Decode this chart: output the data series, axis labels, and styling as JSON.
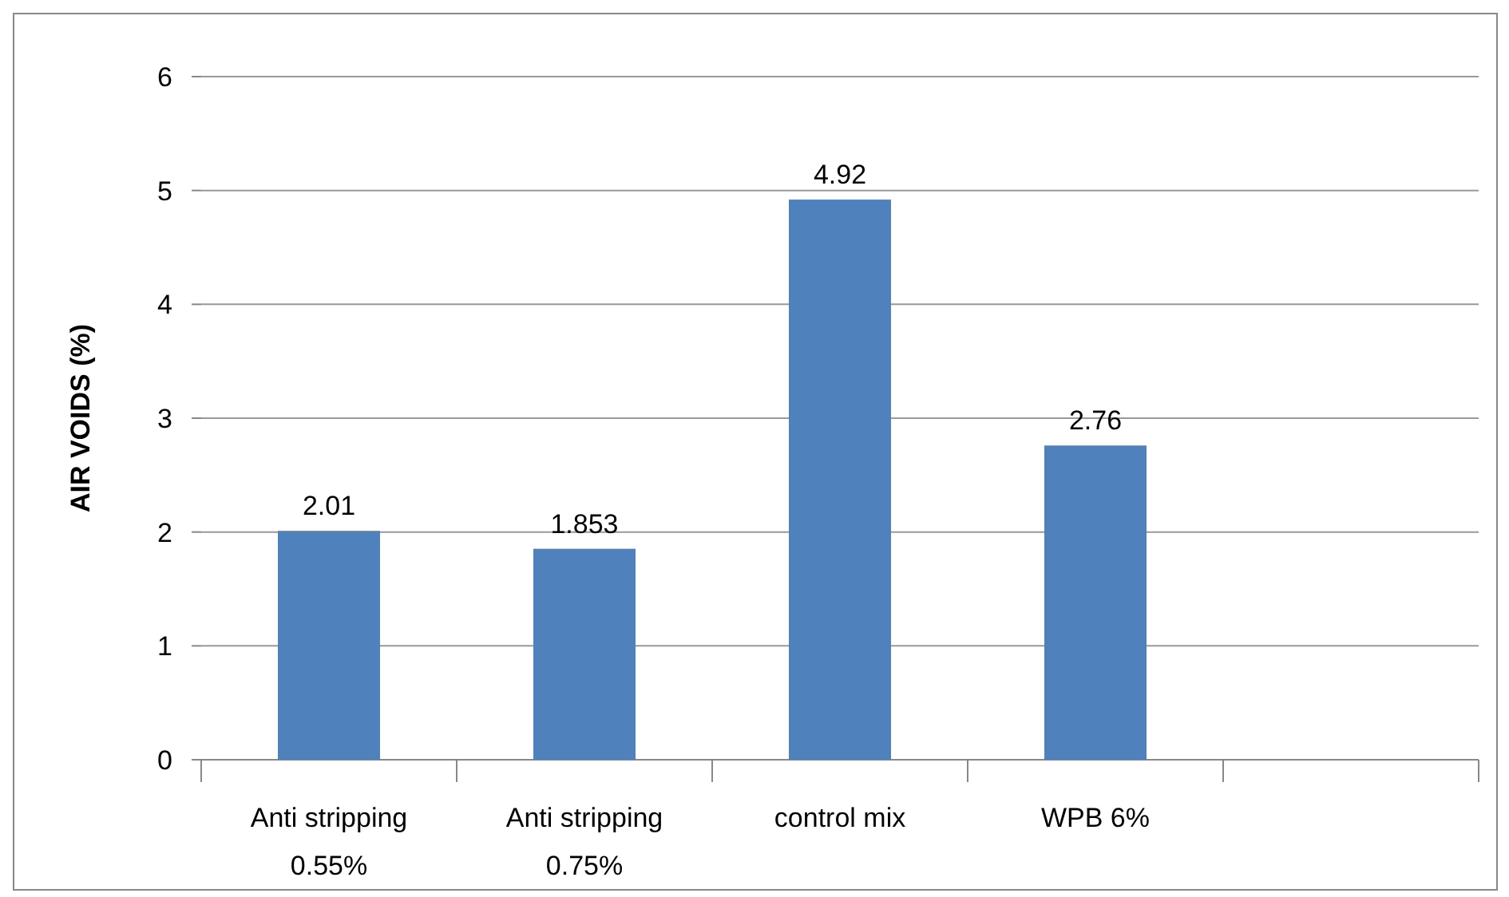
{
  "chart_data": {
    "type": "bar",
    "ylabel": "AIR VOIDS (%)",
    "categories": [
      "Anti stripping 0.55%",
      "Anti stripping 0.75%",
      "control mix",
      "WPB 6%",
      null
    ],
    "values": [
      2.01,
      1.853,
      4.92,
      2.76,
      null
    ],
    "color": "#4f81bd",
    "ylim": [
      0,
      6
    ],
    "yticks": [
      0,
      1,
      2,
      3,
      4,
      5,
      6
    ],
    "grid": "y",
    "data_labels": true
  }
}
